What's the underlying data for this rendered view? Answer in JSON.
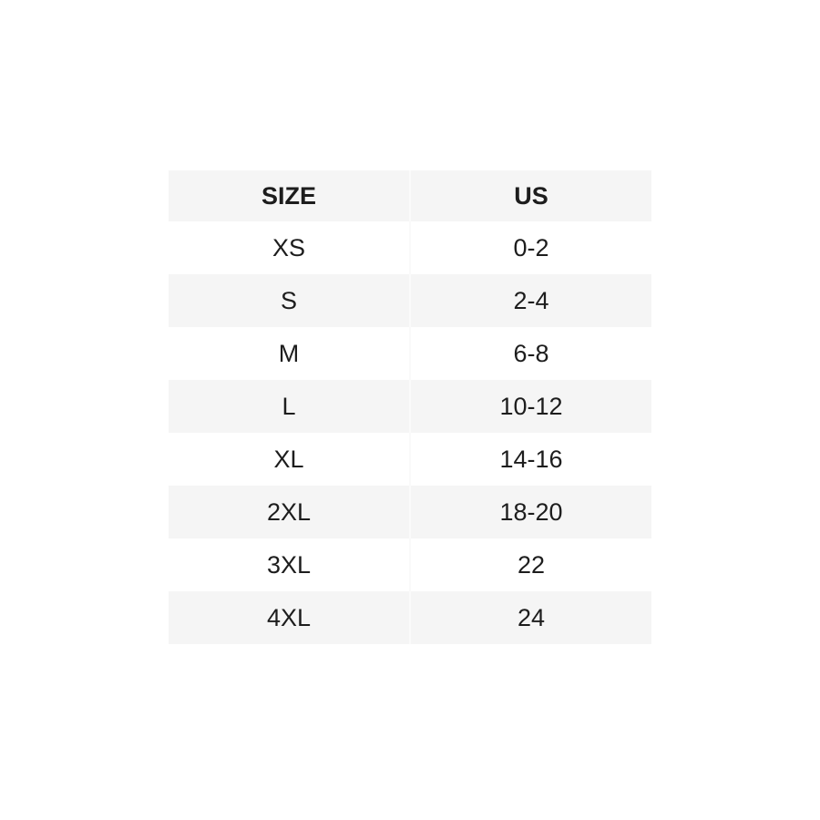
{
  "page": {
    "background": "#ffffff"
  },
  "table": {
    "columns": [
      {
        "label": "SIZE"
      },
      {
        "label": "US"
      }
    ],
    "rows": [
      {
        "size": "XS",
        "us": "0-2"
      },
      {
        "size": "S",
        "us": "2-4"
      },
      {
        "size": "M",
        "us": "6-8"
      },
      {
        "size": "L",
        "us": "10-12"
      },
      {
        "size": "XL",
        "us": "14-16"
      },
      {
        "size": "2XL",
        "us": "18-20"
      },
      {
        "size": "3XL",
        "us": "22"
      },
      {
        "size": "4XL",
        "us": "24"
      }
    ],
    "colors": {
      "header_bg": "#f5f5f5",
      "stripe_bg": "#f5f5f5",
      "row_bg": "#ffffff",
      "divider": "#fafafa",
      "text": "#1d1d1d"
    }
  }
}
